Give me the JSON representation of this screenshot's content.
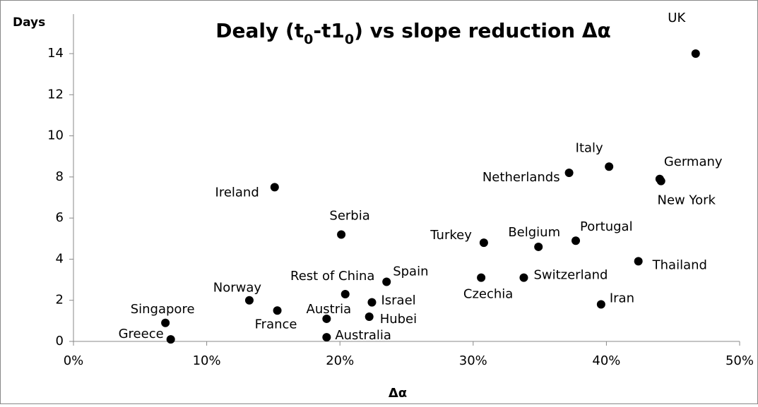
{
  "chart_data": {
    "type": "scatter",
    "title": [
      "Dealy (t",
      "0",
      "-t1",
      "0",
      ") vs slope reduction Δα"
    ],
    "x_label": "Δα",
    "y_label": "Days",
    "labels": [
      "UK",
      "Germany",
      "New York",
      "Italy",
      "Netherlands",
      "Ireland",
      "Serbia",
      "Turkey",
      "Belgium",
      "Portugal",
      "Thailand",
      "Spain",
      "Czechia",
      "Switzerland",
      "Rest of China",
      "Israel",
      "Iran",
      "Norway",
      "Singapore",
      "France",
      "Austria",
      "Hubei",
      "Australia",
      "Greece"
    ],
    "x": [
      46.7,
      44.0,
      44.1,
      40.2,
      37.2,
      15.1,
      20.1,
      30.8,
      34.9,
      37.7,
      42.4,
      23.5,
      30.6,
      33.8,
      20.4,
      22.4,
      39.6,
      13.2,
      6.9,
      15.3,
      19.0,
      22.2,
      19.0,
      7.3
    ],
    "y": [
      14.0,
      7.9,
      7.8,
      8.5,
      8.2,
      7.5,
      5.2,
      4.8,
      4.6,
      4.9,
      3.9,
      2.9,
      3.1,
      3.1,
      2.3,
      1.9,
      1.8,
      2.0,
      0.9,
      1.5,
      1.1,
      1.2,
      0.2,
      0.1
    ],
    "color": "#000000",
    "xlim": [
      0,
      50
    ],
    "xticks": [
      {
        "value": 0,
        "label": "0%"
      },
      {
        "value": 10,
        "label": "10%"
      },
      {
        "value": 20,
        "label": "20%"
      },
      {
        "value": 30,
        "label": "30%"
      },
      {
        "value": 40,
        "label": "40%"
      },
      {
        "value": 50,
        "label": "50%"
      }
    ],
    "ylim": [
      0,
      14
    ],
    "yticks": [
      0,
      2,
      4,
      6,
      8,
      10,
      12,
      14
    ],
    "grid": false
  }
}
